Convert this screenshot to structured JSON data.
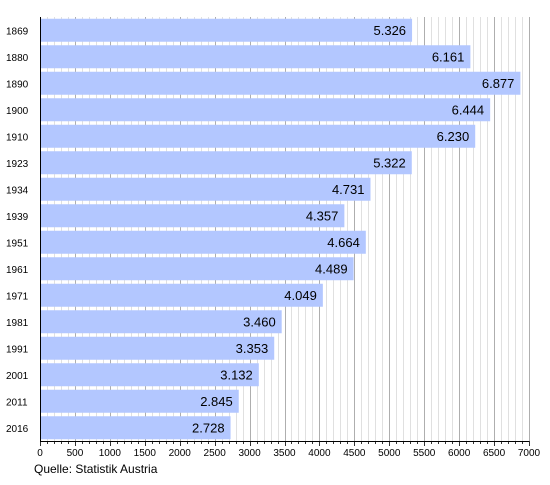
{
  "chart_data": {
    "type": "bar",
    "orientation": "horizontal",
    "categories": [
      "1869",
      "1880",
      "1890",
      "1900",
      "1910",
      "1923",
      "1934",
      "1939",
      "1951",
      "1961",
      "1971",
      "1981",
      "1991",
      "2001",
      "2011",
      "2016"
    ],
    "values": [
      5326,
      6161,
      6877,
      6444,
      6230,
      5322,
      4731,
      4357,
      4664,
      4489,
      4049,
      3460,
      3353,
      3132,
      2845,
      2728
    ],
    "value_labels": [
      "5.326",
      "6.161",
      "6.877",
      "6.444",
      "6.230",
      "5.322",
      "4.731",
      "4.357",
      "4.664",
      "4.489",
      "4.049",
      "3.460",
      "3.353",
      "3.132",
      "2.845",
      "2.728"
    ],
    "x_ticks": [
      "0",
      "500",
      "1000",
      "1500",
      "2000",
      "2500",
      "3000",
      "3500",
      "4000",
      "4500",
      "5000",
      "5500",
      "6000",
      "6500",
      "7000"
    ],
    "xlim": [
      0,
      7000
    ],
    "grid": true,
    "bar_color": "#b3c7ff",
    "gridline_color": "#cccccc",
    "source": "Quelle: Statistik Austria"
  }
}
